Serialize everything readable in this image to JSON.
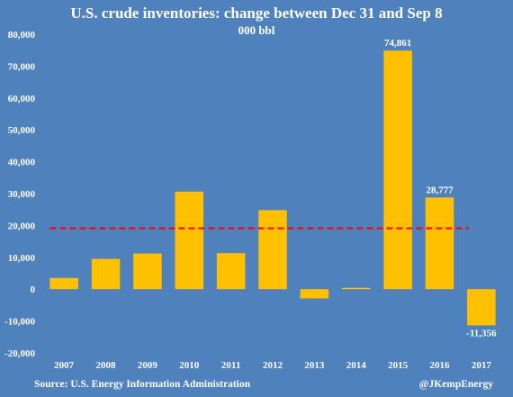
{
  "title": "U.S. crude inventories: change between Dec 31 and Sep 8",
  "subtitle": "000 bbl",
  "source": "Source: U.S. Energy Information Administration",
  "credit": "@JKempEnergy",
  "colors": {
    "background": "#4f81bd",
    "bar": "#ffc000",
    "average_line": "#ff0000",
    "text": "#ffffff"
  },
  "chart_data": {
    "type": "bar",
    "title": "U.S. crude inventories: change between Dec 31 and Sep 8",
    "subtitle": "000 bbl",
    "categories": [
      "2007",
      "2008",
      "2009",
      "2010",
      "2011",
      "2012",
      "2013",
      "2014",
      "2015",
      "2016",
      "2017"
    ],
    "values": [
      3500,
      9500,
      11200,
      30600,
      11300,
      24800,
      -2900,
      400,
      74861,
      28777,
      -11356
    ],
    "data_labels": [
      {
        "index": 8,
        "text": "74,861"
      },
      {
        "index": 9,
        "text": "28,777"
      },
      {
        "index": 10,
        "text": "-11,356"
      }
    ],
    "reference_line": {
      "value": 19100,
      "style": "dashed"
    },
    "ylim": [
      -20000,
      80000
    ],
    "yticks": [
      -20000,
      -10000,
      0,
      10000,
      20000,
      30000,
      40000,
      50000,
      60000,
      70000,
      80000
    ],
    "ytick_labels": [
      "-20,000",
      "-10,000",
      "0",
      "10,000",
      "20,000",
      "30,000",
      "40,000",
      "50,000",
      "60,000",
      "70,000",
      "80,000"
    ],
    "xlabel": "",
    "ylabel": "",
    "grid": false,
    "legend": "none"
  }
}
